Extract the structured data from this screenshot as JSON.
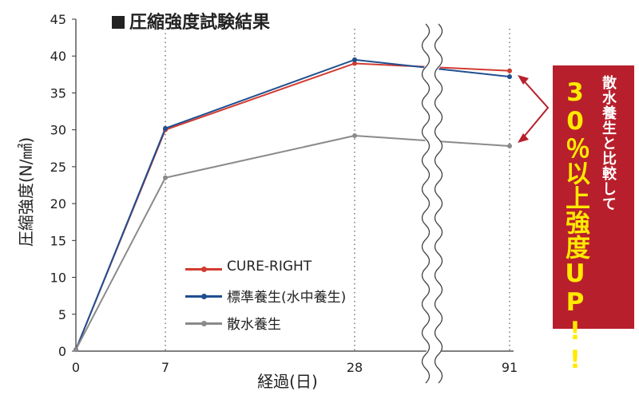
{
  "title": "圧縮強度試験結果",
  "chart_data": {
    "type": "line",
    "xlabel": "経過(日)",
    "ylabel": "圧縮強度(N/㎟)",
    "ylim": [
      0,
      45
    ],
    "yticks": [
      "0",
      "5",
      "10",
      "15",
      "20",
      "25",
      "30",
      "35",
      "40",
      "45"
    ],
    "x": [
      0,
      7,
      28,
      91
    ],
    "xticks": [
      "0",
      "7",
      "28",
      "91"
    ],
    "axis_break": "between 28 and 91",
    "grid": "dotted vertical at 7, 28, 91",
    "legend_position": "lower-center",
    "series": [
      {
        "name": "CURE-RIGHT",
        "color": "#d23b30",
        "values": [
          0.2,
          30.0,
          39.0,
          38.0
        ]
      },
      {
        "name": "標準養生(水中養生)",
        "color": "#1f4f8f",
        "values": [
          0.2,
          30.2,
          39.5,
          37.2
        ]
      },
      {
        "name": "散水養生",
        "color": "#8a8a8a",
        "values": [
          0.2,
          23.5,
          29.2,
          27.8
        ]
      }
    ]
  },
  "callout": {
    "line1": "散水養生と比較して",
    "line2": "30％以上強度UP!!",
    "bg_color": "#b81f2c",
    "text_color_1": "#ffffff",
    "text_color_2": "#ffea00"
  }
}
